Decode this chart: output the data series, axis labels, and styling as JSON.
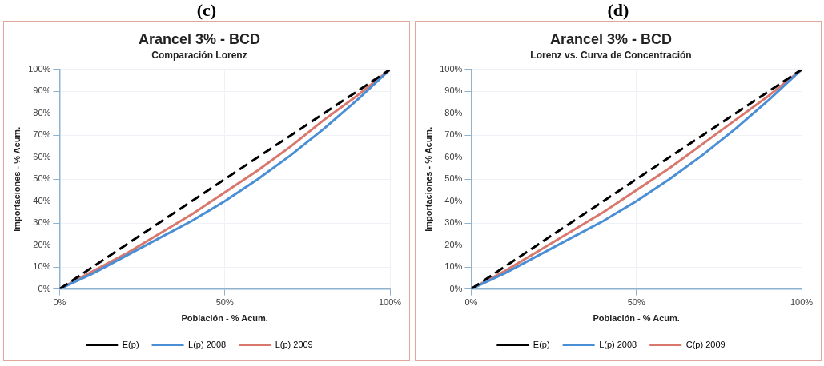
{
  "chart_data": [
    {
      "type": "line",
      "title": "Arancel 3% - BCD",
      "subtitle": "Comparación Lorenz",
      "annotations": [
        "(c)"
      ],
      "xlabel": "Población - % Acum.",
      "ylabel": "Importaciones - % Acum.",
      "x": [
        0,
        10,
        20,
        30,
        40,
        50,
        60,
        70,
        80,
        90,
        100
      ],
      "series": [
        {
          "name": "E(p)",
          "color": "#000000",
          "line_style": "dashed",
          "values": [
            0,
            10,
            20,
            30,
            40,
            50,
            60,
            70,
            80,
            90,
            100
          ]
        },
        {
          "name": "L(p) 2008",
          "color": "#4a8fd6",
          "line_style": "solid",
          "values": [
            0,
            7,
            15,
            23,
            31,
            40,
            50,
            61,
            73,
            86,
            100
          ]
        },
        {
          "name": "L(p) 2009",
          "color": "#d9776c",
          "line_style": "solid",
          "values": [
            0,
            8,
            16,
            25,
            34,
            44,
            54,
            65,
            77,
            88,
            100
          ]
        }
      ],
      "xlim": [
        0,
        100
      ],
      "xticks": [
        {
          "value": 0,
          "label": "0%"
        },
        {
          "value": 50,
          "label": "50%"
        },
        {
          "value": 100,
          "label": "100%"
        }
      ],
      "ylim": [
        0,
        100
      ],
      "yticks": [
        {
          "value": 0,
          "label": "0%"
        },
        {
          "value": 10,
          "label": "10%"
        },
        {
          "value": 20,
          "label": "20%"
        },
        {
          "value": 30,
          "label": "30%"
        },
        {
          "value": 40,
          "label": "40%"
        },
        {
          "value": 50,
          "label": "50%"
        },
        {
          "value": 60,
          "label": "60%"
        },
        {
          "value": 70,
          "label": "70%"
        },
        {
          "value": 80,
          "label": "80%"
        },
        {
          "value": 90,
          "label": "90%"
        },
        {
          "value": 100,
          "label": "100%"
        }
      ],
      "grid": true,
      "legend": "bottom",
      "marker": "none"
    },
    {
      "type": "line",
      "title": "Arancel 3% - BCD",
      "subtitle": "Lorenz vs. Curva de Concentración",
      "annotations": [
        "(d)"
      ],
      "xlabel": "Población - % Acum.",
      "ylabel": "Importaciones - % Acum.",
      "x": [
        0,
        10,
        20,
        30,
        40,
        50,
        60,
        70,
        80,
        90,
        100
      ],
      "series": [
        {
          "name": "E(p)",
          "color": "#000000",
          "line_style": "dashed",
          "values": [
            0,
            10,
            20,
            30,
            40,
            50,
            60,
            70,
            80,
            90,
            100
          ]
        },
        {
          "name": "L(p) 2008",
          "color": "#4a8fd6",
          "line_style": "solid",
          "values": [
            0,
            7,
            15,
            23,
            31,
            40,
            50,
            61,
            73,
            86,
            100
          ]
        },
        {
          "name": "C(p) 2009",
          "color": "#d9776c",
          "line_style": "solid",
          "values": [
            0,
            8,
            17,
            26,
            35,
            45,
            55,
            66,
            77,
            88,
            100
          ]
        }
      ],
      "xlim": [
        0,
        100
      ],
      "xticks": [
        {
          "value": 0,
          "label": "0%"
        },
        {
          "value": 50,
          "label": "50%"
        },
        {
          "value": 100,
          "label": "100%"
        }
      ],
      "ylim": [
        0,
        100
      ],
      "yticks": [
        {
          "value": 0,
          "label": "0%"
        },
        {
          "value": 10,
          "label": "10%"
        },
        {
          "value": 20,
          "label": "20%"
        },
        {
          "value": 30,
          "label": "30%"
        },
        {
          "value": 40,
          "label": "40%"
        },
        {
          "value": 50,
          "label": "50%"
        },
        {
          "value": 60,
          "label": "60%"
        },
        {
          "value": 70,
          "label": "70%"
        },
        {
          "value": 80,
          "label": "80%"
        },
        {
          "value": 90,
          "label": "90%"
        },
        {
          "value": 100,
          "label": "100%"
        }
      ],
      "grid": true,
      "legend": "bottom",
      "marker": "none"
    }
  ]
}
